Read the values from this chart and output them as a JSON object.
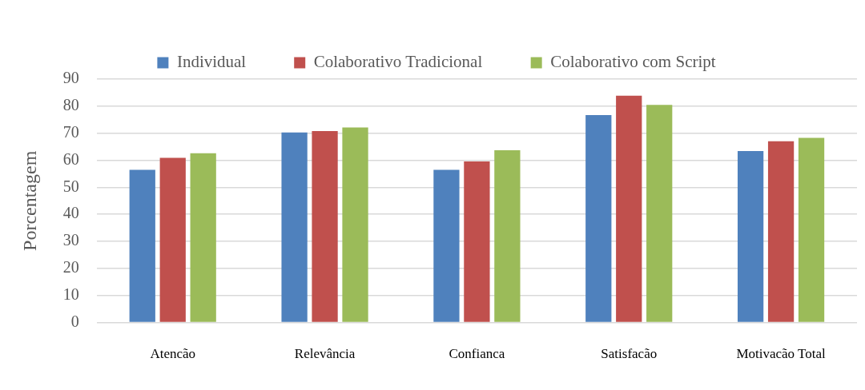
{
  "chart_data": {
    "type": "bar",
    "ylabel": "Porcentagem",
    "categories": [
      "Atencão",
      "Relevância",
      "Confianca",
      "Satisfacão",
      "Motivacão Total"
    ],
    "series": [
      {
        "name": "Individual",
        "color": "#4f81bd",
        "values": [
          56.5,
          70.3,
          56.5,
          76.7,
          63.4
        ]
      },
      {
        "name": "Colaborativo Tradicional",
        "color": "#c0504d",
        "values": [
          60.9,
          70.8,
          59.6,
          83.9,
          67.0
        ]
      },
      {
        "name": "Colaborativo com Script",
        "color": "#9bbb59",
        "values": [
          62.6,
          72.1,
          63.7,
          80.5,
          68.3
        ]
      }
    ],
    "ylim": [
      0,
      90
    ],
    "yticks": [
      0,
      10,
      20,
      30,
      40,
      50,
      60,
      70,
      80,
      90
    ],
    "grid": "y",
    "legend": "top"
  }
}
